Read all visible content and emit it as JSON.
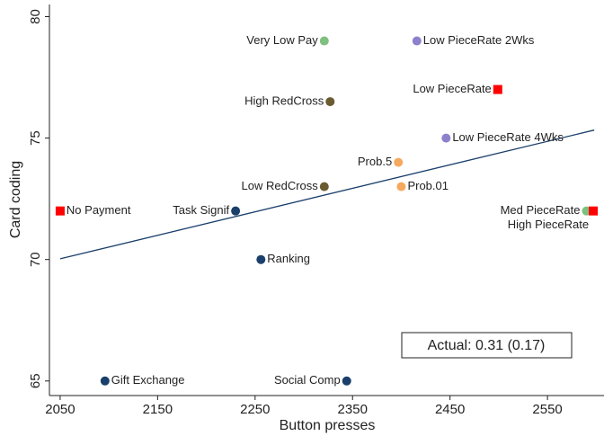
{
  "chart_data": {
    "type": "scatter",
    "x_label": "Button presses",
    "y_label": "Card coding",
    "xlim": [
      2039,
      2608
    ],
    "ylim": [
      64.4,
      80.5
    ],
    "xticks": [
      2050,
      2150,
      2250,
      2350,
      2450,
      2550
    ],
    "yticks": [
      65,
      70,
      75,
      80
    ],
    "points": [
      {
        "label": "Very Low Pay",
        "x": 2321,
        "y": 79,
        "color": "#7fbf7f",
        "marker": "circle"
      },
      {
        "label": "Low PieceRate 2Wks",
        "x": 2416,
        "y": 79,
        "color": "#8e80cc",
        "marker": "circle"
      },
      {
        "label": "Low PieceRate",
        "x": 2499,
        "y": 77,
        "color": "#ff0000",
        "marker": "square"
      },
      {
        "label": "High RedCross",
        "x": 2327,
        "y": 76.5,
        "color": "#6b5b30",
        "marker": "circle"
      },
      {
        "label": "Low PieceRate 4Wks",
        "x": 2446,
        "y": 75,
        "color": "#8e80cc",
        "marker": "circle"
      },
      {
        "label": "Prob.5",
        "x": 2397,
        "y": 74,
        "color": "#f4a95e",
        "marker": "circle"
      },
      {
        "label": "Prob.01",
        "x": 2400,
        "y": 73,
        "color": "#f4a95e",
        "marker": "circle"
      },
      {
        "label": "Low RedCross",
        "x": 2321,
        "y": 73,
        "color": "#6b5b30",
        "marker": "circle"
      },
      {
        "label": "No Payment",
        "x": 2050,
        "y": 72,
        "color": "#ff0000",
        "marker": "square"
      },
      {
        "label": "Task Signif",
        "x": 2230,
        "y": 72,
        "color": "#1a3f6b",
        "marker": "circle"
      },
      {
        "label": "Med PieceRate",
        "x": 2590,
        "y": 72,
        "color": "#7fbf7f",
        "marker": "circle"
      },
      {
        "label": "High PieceRate",
        "x": 2597,
        "y": 72,
        "color": "#ff0000",
        "marker": "square"
      },
      {
        "label": "Ranking",
        "x": 2256,
        "y": 70,
        "color": "#1a3f6b",
        "marker": "circle"
      },
      {
        "label": "Gift Exchange",
        "x": 2096,
        "y": 65,
        "color": "#1a3f6b",
        "marker": "circle"
      },
      {
        "label": "Social Comp",
        "x": 2344,
        "y": 65,
        "color": "#1a3f6b",
        "marker": "circle"
      }
    ],
    "fit_line": {
      "x": [
        2050,
        2598
      ],
      "y": [
        70.03,
        75.33
      ],
      "color": "#1a3f6b"
    },
    "annotation": "Actual: 0.31 (0.17)"
  }
}
